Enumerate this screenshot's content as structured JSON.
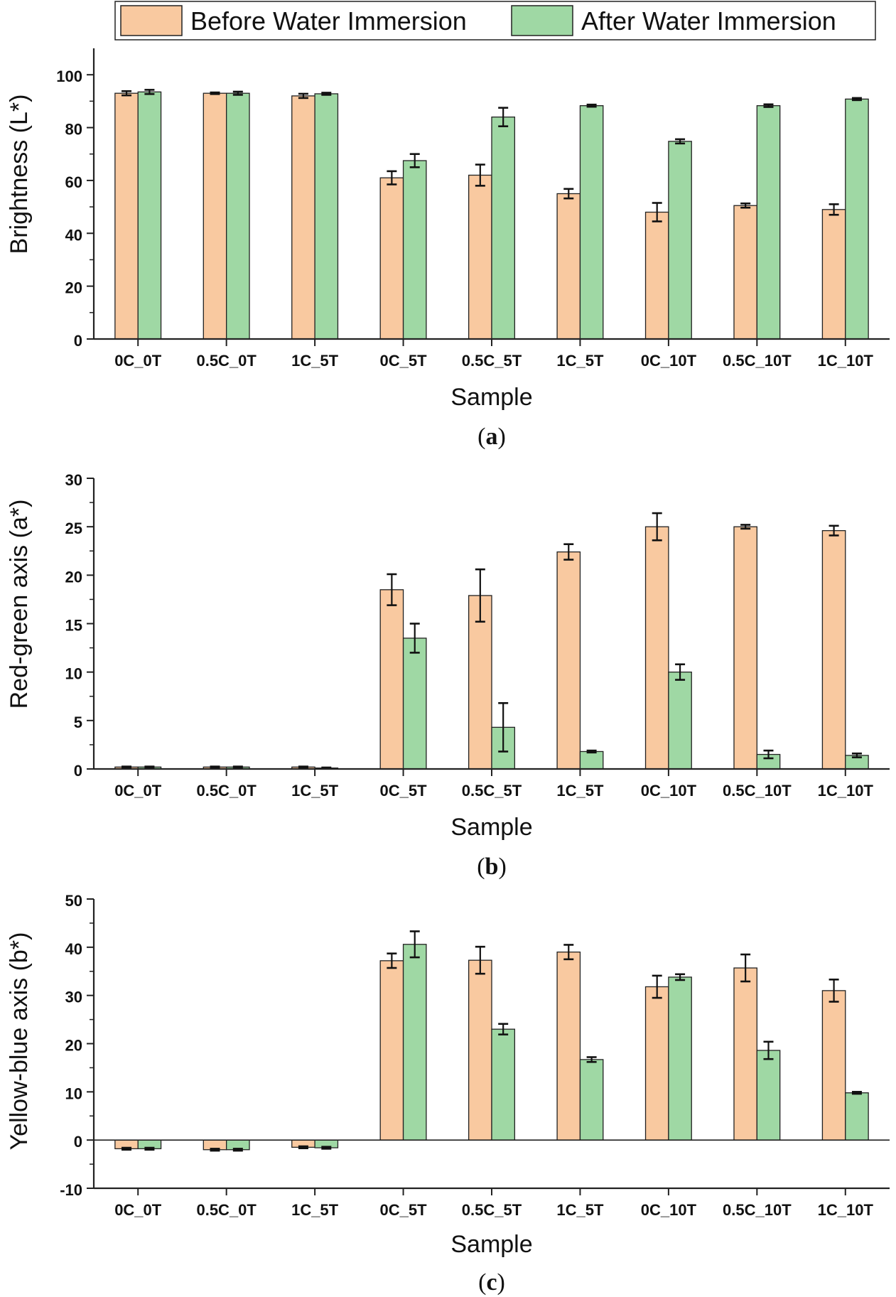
{
  "legend": {
    "items": [
      {
        "label": "Before Water Immersion",
        "color": "#f9c9a0"
      },
      {
        "label": "After Water Immersion",
        "color": "#9fd8a4"
      }
    ]
  },
  "chart_data": [
    {
      "type": "bar",
      "panel": "a",
      "panel_label": {
        "open": "(",
        "letter": "a",
        "close": ")"
      },
      "xlabel": "Sample",
      "ylabel": "Brightness (L*)",
      "ylim": [
        0,
        110
      ],
      "yticks": [
        0,
        20,
        40,
        60,
        80,
        100
      ],
      "categories": [
        "0C_0T",
        "0.5C_0T",
        "1C_5T",
        "0C_5T",
        "0.5C_5T",
        "1C_5T",
        "0C_10T",
        "0.5C_10T",
        "1C_10T"
      ],
      "series": [
        {
          "name": "Before Water Immersion",
          "values": [
            93,
            93,
            92,
            61,
            62,
            55,
            48,
            50.5,
            49
          ],
          "errors": [
            0.8,
            0.3,
            0.8,
            2.5,
            4.0,
            1.8,
            3.5,
            0.8,
            2.0
          ]
        },
        {
          "name": "After Water Immersion",
          "values": [
            93.5,
            93,
            92.8,
            67.5,
            84,
            88.3,
            74.8,
            88.3,
            90.8
          ],
          "errors": [
            0.8,
            0.6,
            0.4,
            2.5,
            3.5,
            0.4,
            0.8,
            0.5,
            0.4
          ]
        }
      ]
    },
    {
      "type": "bar",
      "panel": "b",
      "panel_label": {
        "open": "(",
        "letter": "b",
        "close": ")"
      },
      "xlabel": "Sample",
      "ylabel": "Red-green axis (a*)",
      "ylim": [
        0,
        30
      ],
      "yticks": [
        0,
        5,
        10,
        15,
        20,
        25,
        30
      ],
      "categories": [
        "0C_0T",
        "0.5C_0T",
        "1C_5T",
        "0C_5T",
        "0.5C_5T",
        "1C_5T",
        "0C_10T",
        "0.5C_10T",
        "1C_10T"
      ],
      "series": [
        {
          "name": "Before Water Immersion",
          "values": [
            0.2,
            0.2,
            0.2,
            18.5,
            17.9,
            22.4,
            25.0,
            25.0,
            24.6
          ],
          "errors": [
            0.05,
            0.05,
            0.05,
            1.6,
            2.7,
            0.8,
            1.4,
            0.2,
            0.5
          ]
        },
        {
          "name": "After Water Immersion",
          "values": [
            0.2,
            0.2,
            0.1,
            13.5,
            4.3,
            1.8,
            10.0,
            1.5,
            1.4
          ],
          "errors": [
            0.05,
            0.05,
            0.05,
            1.5,
            2.5,
            0.1,
            0.8,
            0.4,
            0.2
          ]
        }
      ]
    },
    {
      "type": "bar",
      "panel": "c",
      "panel_label": {
        "open": "(",
        "letter": "c",
        "close": ")"
      },
      "xlabel": "Sample",
      "ylabel": "Yellow-blue axis (b*)",
      "ylim": [
        -10,
        50
      ],
      "yticks": [
        -10,
        0,
        10,
        20,
        30,
        40,
        50
      ],
      "categories": [
        "0C_0T",
        "0.5C_0T",
        "1C_5T",
        "0C_5T",
        "0.5C_5T",
        "1C_5T",
        "0C_10T",
        "0.5C_10T",
        "1C_10T"
      ],
      "series": [
        {
          "name": "Before Water Immersion",
          "values": [
            -1.8,
            -2.0,
            -1.5,
            37.2,
            37.3,
            39.0,
            31.8,
            35.7,
            31.0
          ],
          "errors": [
            0.2,
            0.2,
            0.2,
            1.5,
            2.8,
            1.5,
            2.3,
            2.8,
            2.3
          ]
        },
        {
          "name": "After Water Immersion",
          "values": [
            -1.8,
            -2.0,
            -1.6,
            40.6,
            23.0,
            16.7,
            33.8,
            18.6,
            9.8
          ],
          "errors": [
            0.2,
            0.2,
            0.2,
            2.7,
            1.1,
            0.5,
            0.6,
            1.8,
            0.2
          ]
        }
      ]
    }
  ]
}
